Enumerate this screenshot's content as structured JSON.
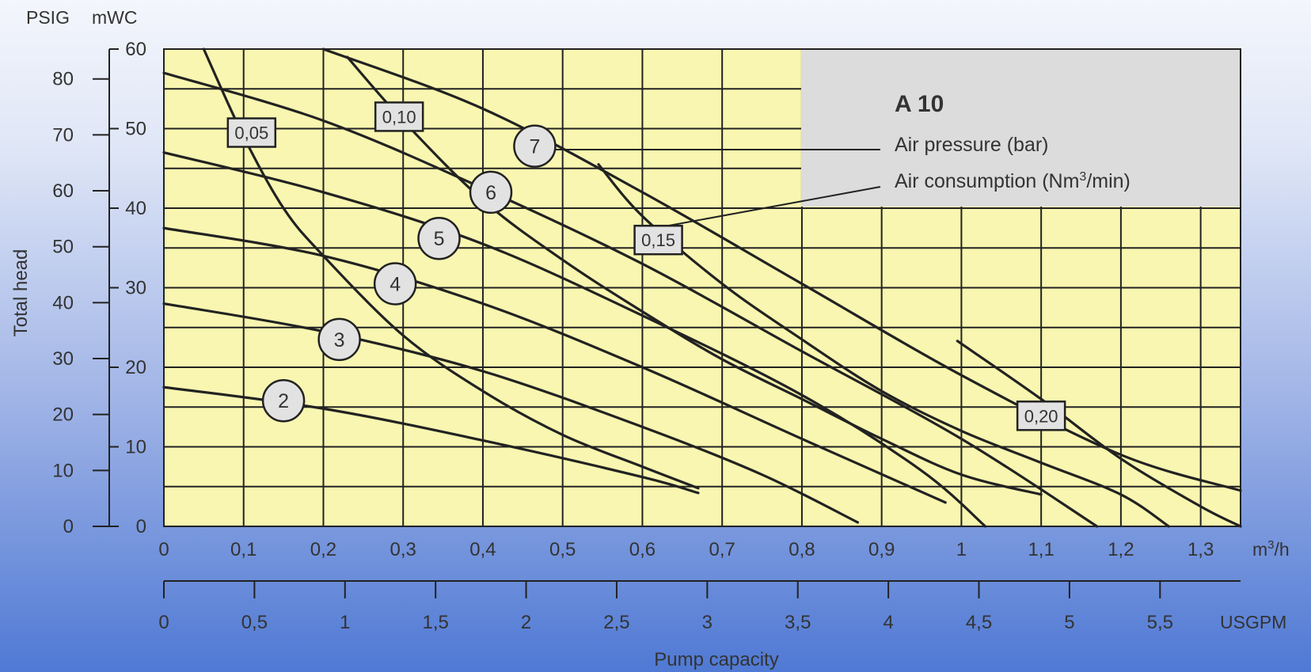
{
  "chart_data": {
    "type": "line",
    "model": "A 10",
    "legend_labels": {
      "air_pressure": "Air pressure (bar)",
      "air_consumption_prefix": "Air consumption (Nm",
      "air_consumption_sup": "3",
      "air_consumption_suffix": "/min)"
    },
    "xlabel": "Pump capacity",
    "x_unit_m3h_base": "m",
    "x_unit_m3h_sup": "3",
    "x_unit_m3h_suffix": "/h",
    "x_unit_usgpm": "USGPM",
    "ylabel": "Total head",
    "y_unit_psig": "PSIG",
    "y_unit_mwc": "mWC",
    "xlim": [
      0,
      1.35
    ],
    "ylim": [
      0,
      60
    ],
    "x_ticks_m3h": [
      "0",
      "0,1",
      "0,2",
      "0,3",
      "0,4",
      "0,5",
      "0,6",
      "0,7",
      "0,8",
      "0,9",
      "1",
      "1,1",
      "1,2",
      "1,3"
    ],
    "x_ticks_usgpm": [
      "0",
      "0,5",
      "1",
      "1,5",
      "2",
      "2,5",
      "3",
      "3,5",
      "4",
      "4,5",
      "5",
      "5,5"
    ],
    "y_ticks_mwc": [
      "0",
      "10",
      "20",
      "30",
      "40",
      "50",
      "60"
    ],
    "y_ticks_psig": [
      "0",
      "10",
      "20",
      "30",
      "40",
      "50",
      "60",
      "70",
      "80"
    ],
    "pressure_series": [
      {
        "name": "2",
        "x": [
          0,
          0.2,
          0.4,
          0.6,
          0.67
        ],
        "y": [
          17.5,
          14.8,
          10.8,
          6.2,
          4.2
        ]
      },
      {
        "name": "3",
        "x": [
          0,
          0.2,
          0.4,
          0.6,
          0.75,
          0.87
        ],
        "y": [
          28,
          24.5,
          19.5,
          12.5,
          6.5,
          0.5
        ]
      },
      {
        "name": "4",
        "x": [
          0,
          0.2,
          0.4,
          0.6,
          0.8,
          0.98
        ],
        "y": [
          37.5,
          34,
          28,
          20,
          11,
          3
        ]
      },
      {
        "name": "5",
        "x": [
          0,
          0.2,
          0.4,
          0.6,
          0.8,
          0.95,
          1.03
        ],
        "y": [
          47,
          42,
          35.5,
          26.5,
          16.5,
          7,
          0
        ]
      },
      {
        "name": "6",
        "x": [
          0,
          0.2,
          0.4,
          0.6,
          0.8,
          1.0,
          1.17
        ],
        "y": [
          57,
          51,
          42.5,
          33,
          22,
          11,
          0
        ]
      },
      {
        "name": "7",
        "x": [
          0.2,
          0.4,
          0.6,
          0.8,
          1.0,
          1.2,
          1.35
        ],
        "y": [
          60,
          52.5,
          42,
          30.5,
          19,
          9,
          4.5
        ]
      }
    ],
    "air_consumption_curves": [
      {
        "name": "0,05",
        "x": [
          0.05,
          0.1,
          0.15,
          0.2,
          0.3,
          0.4,
          0.5,
          0.6,
          0.67
        ],
        "y": [
          60,
          49,
          40,
          34,
          24,
          17,
          11.5,
          7.5,
          4.8
        ]
      },
      {
        "name": "0,10",
        "x": [
          0.23,
          0.3,
          0.4,
          0.5,
          0.6,
          0.7,
          0.8,
          0.9,
          1.0,
          1.1
        ],
        "y": [
          59,
          51,
          41,
          33.5,
          27,
          21,
          16,
          11,
          6.5,
          4
        ]
      },
      {
        "name": "0,15",
        "x": [
          0.545,
          0.6,
          0.7,
          0.8,
          0.9,
          1.0,
          1.1,
          1.2,
          1.26
        ],
        "y": [
          45.5,
          39,
          30.5,
          23.5,
          17,
          12,
          8,
          4,
          0
        ]
      },
      {
        "name": "0,20",
        "x": [
          0.995,
          1.1,
          1.2,
          1.3,
          1.35
        ],
        "y": [
          23.3,
          16,
          8.5,
          2.5,
          0
        ]
      }
    ],
    "pressure_label_positions": [
      {
        "name": "2",
        "x": 0.15,
        "y": 15.8
      },
      {
        "name": "3",
        "x": 0.22,
        "y": 23.5
      },
      {
        "name": "4",
        "x": 0.29,
        "y": 30.5
      },
      {
        "name": "5",
        "x": 0.345,
        "y": 36.2
      },
      {
        "name": "6",
        "x": 0.41,
        "y": 42
      },
      {
        "name": "7",
        "x": 0.465,
        "y": 47.8
      }
    ],
    "air_label_positions": [
      {
        "name": "0,05",
        "x": 0.11,
        "y": 49.5
      },
      {
        "name": "0,10",
        "x": 0.295,
        "y": 51.5
      },
      {
        "name": "0,15",
        "x": 0.62,
        "y": 36
      },
      {
        "name": "0,20",
        "x": 1.1,
        "y": 13.9
      }
    ],
    "colors": {
      "plot_bg": "#f8f6b0",
      "legend_bg": "#dcdcdc",
      "line": "#222222",
      "badge": "#e2e2e2"
    }
  }
}
